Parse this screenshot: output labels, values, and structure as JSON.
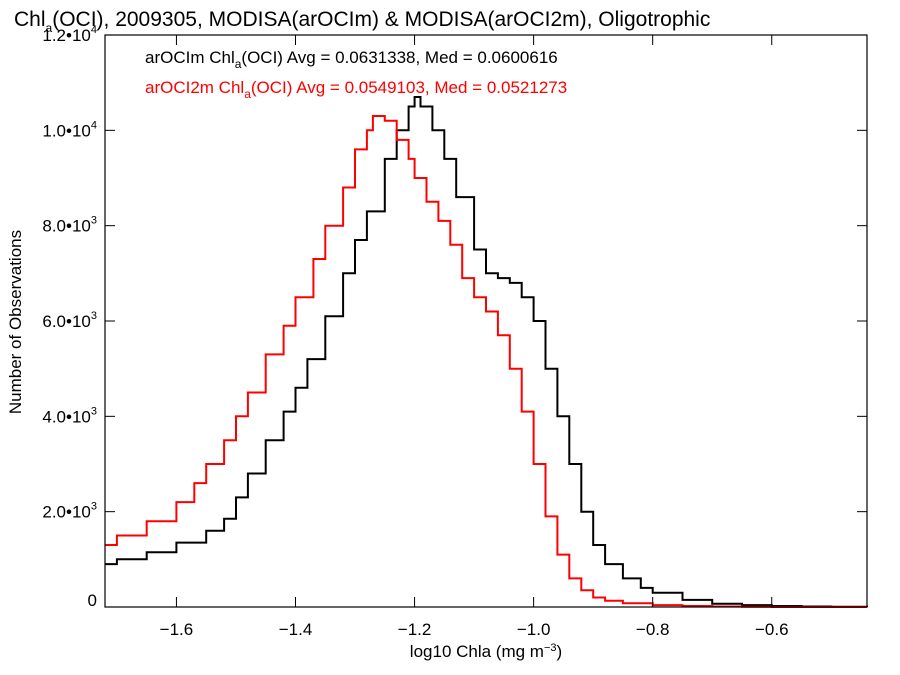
{
  "chart_data": {
    "type": "line",
    "title_parts": [
      "Chl",
      "a",
      "(OCI), 2009305, MODISA(arOCIm) & MODISA(arOCI2m), Oligotrophic"
    ],
    "xlabel_parts": [
      "log10 Chla (mg m",
      "−3",
      ")"
    ],
    "ylabel": "Number of Observations",
    "xlim": [
      -1.72,
      -0.44
    ],
    "ylim": [
      0,
      12000
    ],
    "x_ticks": [
      -1.6,
      -1.4,
      -1.2,
      -1.0,
      -0.8,
      -0.6
    ],
    "x_tick_labels": [
      "−1.6",
      "−1.4",
      "−1.2",
      "−1.0",
      "−0.8",
      "−0.6"
    ],
    "y_ticks": [
      0,
      2000,
      4000,
      6000,
      8000,
      10000,
      12000
    ],
    "y_tick_labels": [
      {
        "base": "0",
        "exp": ""
      },
      {
        "base": "2.0•10",
        "exp": "3"
      },
      {
        "base": "4.0•10",
        "exp": "3"
      },
      {
        "base": "6.0•10",
        "exp": "3"
      },
      {
        "base": "8.0•10",
        "exp": "3"
      },
      {
        "base": "1.0•10",
        "exp": "4"
      },
      {
        "base": "1.2•10",
        "exp": "4"
      }
    ],
    "grid": false,
    "legend_position": "top-left",
    "series": [
      {
        "legend_parts": [
          "arOCIm Chl",
          "a",
          "(OCI) Avg = 0.0631338, Med = 0.0600616"
        ],
        "color": "#000000",
        "x": [
          -1.72,
          -1.7,
          -1.65,
          -1.6,
          -1.55,
          -1.52,
          -1.5,
          -1.48,
          -1.45,
          -1.42,
          -1.4,
          -1.38,
          -1.35,
          -1.32,
          -1.3,
          -1.28,
          -1.25,
          -1.23,
          -1.21,
          -1.2,
          -1.19,
          -1.17,
          -1.15,
          -1.13,
          -1.1,
          -1.08,
          -1.06,
          -1.04,
          -1.02,
          -1.0,
          -0.98,
          -0.96,
          -0.94,
          -0.92,
          -0.9,
          -0.88,
          -0.85,
          -0.82,
          -0.8,
          -0.75,
          -0.7,
          -0.65,
          -0.6,
          -0.55,
          -0.5,
          -0.44
        ],
        "y": [
          900,
          1000,
          1150,
          1350,
          1600,
          1850,
          2300,
          2800,
          3500,
          4100,
          4600,
          5200,
          6100,
          7000,
          7700,
          8300,
          9400,
          10000,
          10500,
          10700,
          10500,
          10000,
          9400,
          8600,
          7500,
          7000,
          6900,
          6800,
          6500,
          6000,
          5000,
          4000,
          3000,
          2000,
          1300,
          900,
          600,
          400,
          300,
          150,
          70,
          40,
          20,
          10,
          5,
          0
        ]
      },
      {
        "legend_parts": [
          "arOCI2m Chl",
          "a",
          "(OCI) Avg = 0.0549103, Med = 0.0521273"
        ],
        "color": "#ff0000",
        "x": [
          -1.72,
          -1.7,
          -1.65,
          -1.6,
          -1.57,
          -1.55,
          -1.52,
          -1.5,
          -1.48,
          -1.45,
          -1.42,
          -1.4,
          -1.37,
          -1.35,
          -1.32,
          -1.3,
          -1.28,
          -1.27,
          -1.25,
          -1.23,
          -1.21,
          -1.2,
          -1.18,
          -1.16,
          -1.14,
          -1.12,
          -1.1,
          -1.08,
          -1.06,
          -1.04,
          -1.02,
          -1.0,
          -0.98,
          -0.96,
          -0.94,
          -0.92,
          -0.9,
          -0.88,
          -0.85,
          -0.8,
          -0.75,
          -0.7,
          -0.65,
          -0.6,
          -0.55,
          -0.5,
          -0.44
        ],
        "y": [
          1300,
          1500,
          1800,
          2200,
          2600,
          3000,
          3500,
          4000,
          4500,
          5300,
          5900,
          6500,
          7300,
          8000,
          8800,
          9600,
          10000,
          10300,
          10200,
          9800,
          9400,
          9000,
          8500,
          8100,
          7600,
          6900,
          6500,
          6200,
          5700,
          5000,
          4100,
          3000,
          1900,
          1100,
          600,
          350,
          200,
          130,
          80,
          40,
          20,
          10,
          5,
          0,
          0,
          0,
          0
        ]
      }
    ]
  }
}
